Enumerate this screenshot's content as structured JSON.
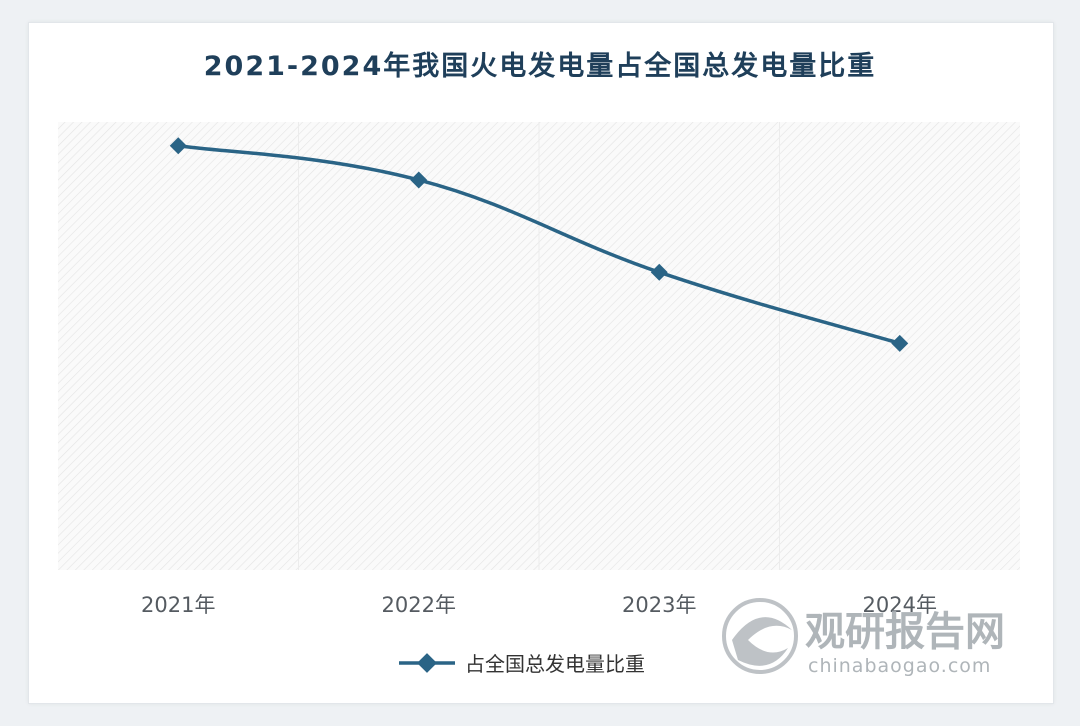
{
  "chart_data": {
    "type": "line",
    "title": "2021-2024年我国火电发电量占全国总发电量比重",
    "categories": [
      "2021年",
      "2022年",
      "2023年",
      "2024年"
    ],
    "series": [
      {
        "name": "占全国总发电量比重",
        "values": [
          71.1,
          69.8,
          66.3,
          63.6
        ],
        "color": "#2a6486"
      }
    ],
    "ylim": [
      55,
      72
    ],
    "grid": false,
    "legend": "bottom",
    "marker": "diamond"
  },
  "watermark": {
    "name_cn": "观研报告网",
    "url": "chinabaogao.com",
    "icon": "swirl-logo-icon"
  }
}
